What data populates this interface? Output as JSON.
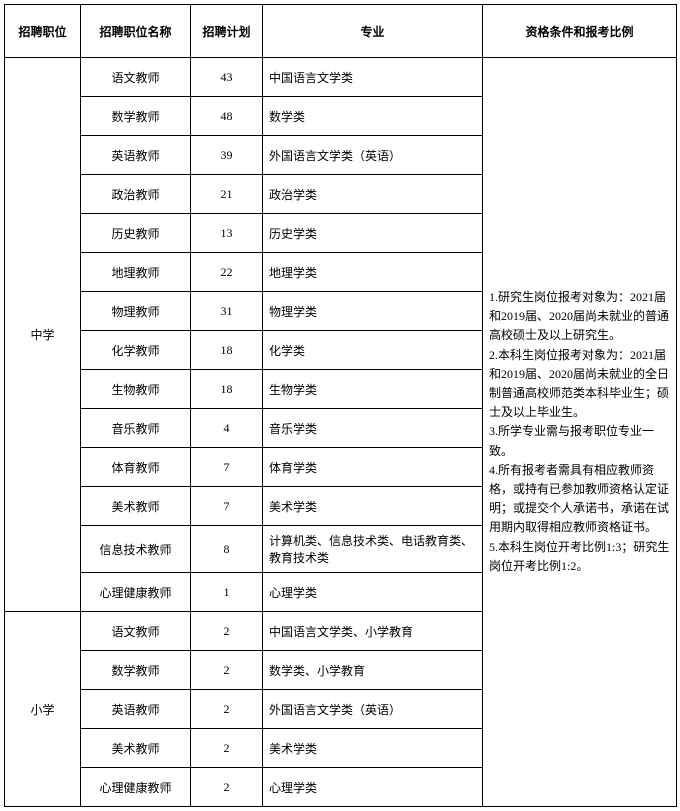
{
  "columns": [
    "招聘职位",
    "招聘职位名称",
    "招聘计划",
    "专业",
    "资格条件和报考比例"
  ],
  "groups": [
    {
      "category": "中学",
      "rows": [
        {
          "name": "语文教师",
          "plan": "43",
          "major": "中国语言文学类"
        },
        {
          "name": "数学教师",
          "plan": "48",
          "major": "数学类"
        },
        {
          "name": "英语教师",
          "plan": "39",
          "major": "外国语言文学类（英语）"
        },
        {
          "name": "政治教师",
          "plan": "21",
          "major": "政治学类"
        },
        {
          "name": "历史教师",
          "plan": "13",
          "major": "历史学类"
        },
        {
          "name": "地理教师",
          "plan": "22",
          "major": "地理学类"
        },
        {
          "name": "物理教师",
          "plan": "31",
          "major": "物理学类"
        },
        {
          "name": "化学教师",
          "plan": "18",
          "major": "化学类"
        },
        {
          "name": "生物教师",
          "plan": "18",
          "major": "生物学类"
        },
        {
          "name": "音乐教师",
          "plan": "4",
          "major": "音乐学类"
        },
        {
          "name": "体育教师",
          "plan": "7",
          "major": "体育学类"
        },
        {
          "name": "美术教师",
          "plan": "7",
          "major": "美术学类"
        },
        {
          "name": "信息技术教师",
          "plan": "8",
          "major": "计算机类、信息技术类、电话教育类、教育技术类"
        },
        {
          "name": "心理健康教师",
          "plan": "1",
          "major": "心理学类"
        }
      ]
    },
    {
      "category": "小学",
      "rows": [
        {
          "name": "语文教师",
          "plan": "2",
          "major": "中国语言文学类、小学教育"
        },
        {
          "name": "数学教师",
          "plan": "2",
          "major": "数学类、小学教育"
        },
        {
          "name": "英语教师",
          "plan": "2",
          "major": "外国语言文学类（英语）"
        },
        {
          "name": "美术教师",
          "plan": "2",
          "major": "美术学类"
        },
        {
          "name": "心理健康教师",
          "plan": "2",
          "major": "心理学类"
        }
      ]
    }
  ],
  "requirements": "1.研究生岗位报考对象为：2021届和2019届、2020届尚未就业的普通高校硕士及以上研究生。\n2.本科生岗位报考对象为：2021届和2019届、2020届尚未就业的全日制普通高校师范类本科毕业生；硕士及以上毕业生。\n3.所学专业需与报考职位专业一致。\n4.所有报考者需具有相应教师资格，或持有已参加教师资格认定证明；或提交个人承诺书，承诺在试用期内取得相应教师资格证书。\n5.本科生岗位开考比例1:3；研究生岗位开考比例1:2。",
  "style": {
    "font_family": "SimSun",
    "font_size_body": 12,
    "border_color": "#000000",
    "background_color": "#ffffff",
    "text_color": "#000000"
  }
}
